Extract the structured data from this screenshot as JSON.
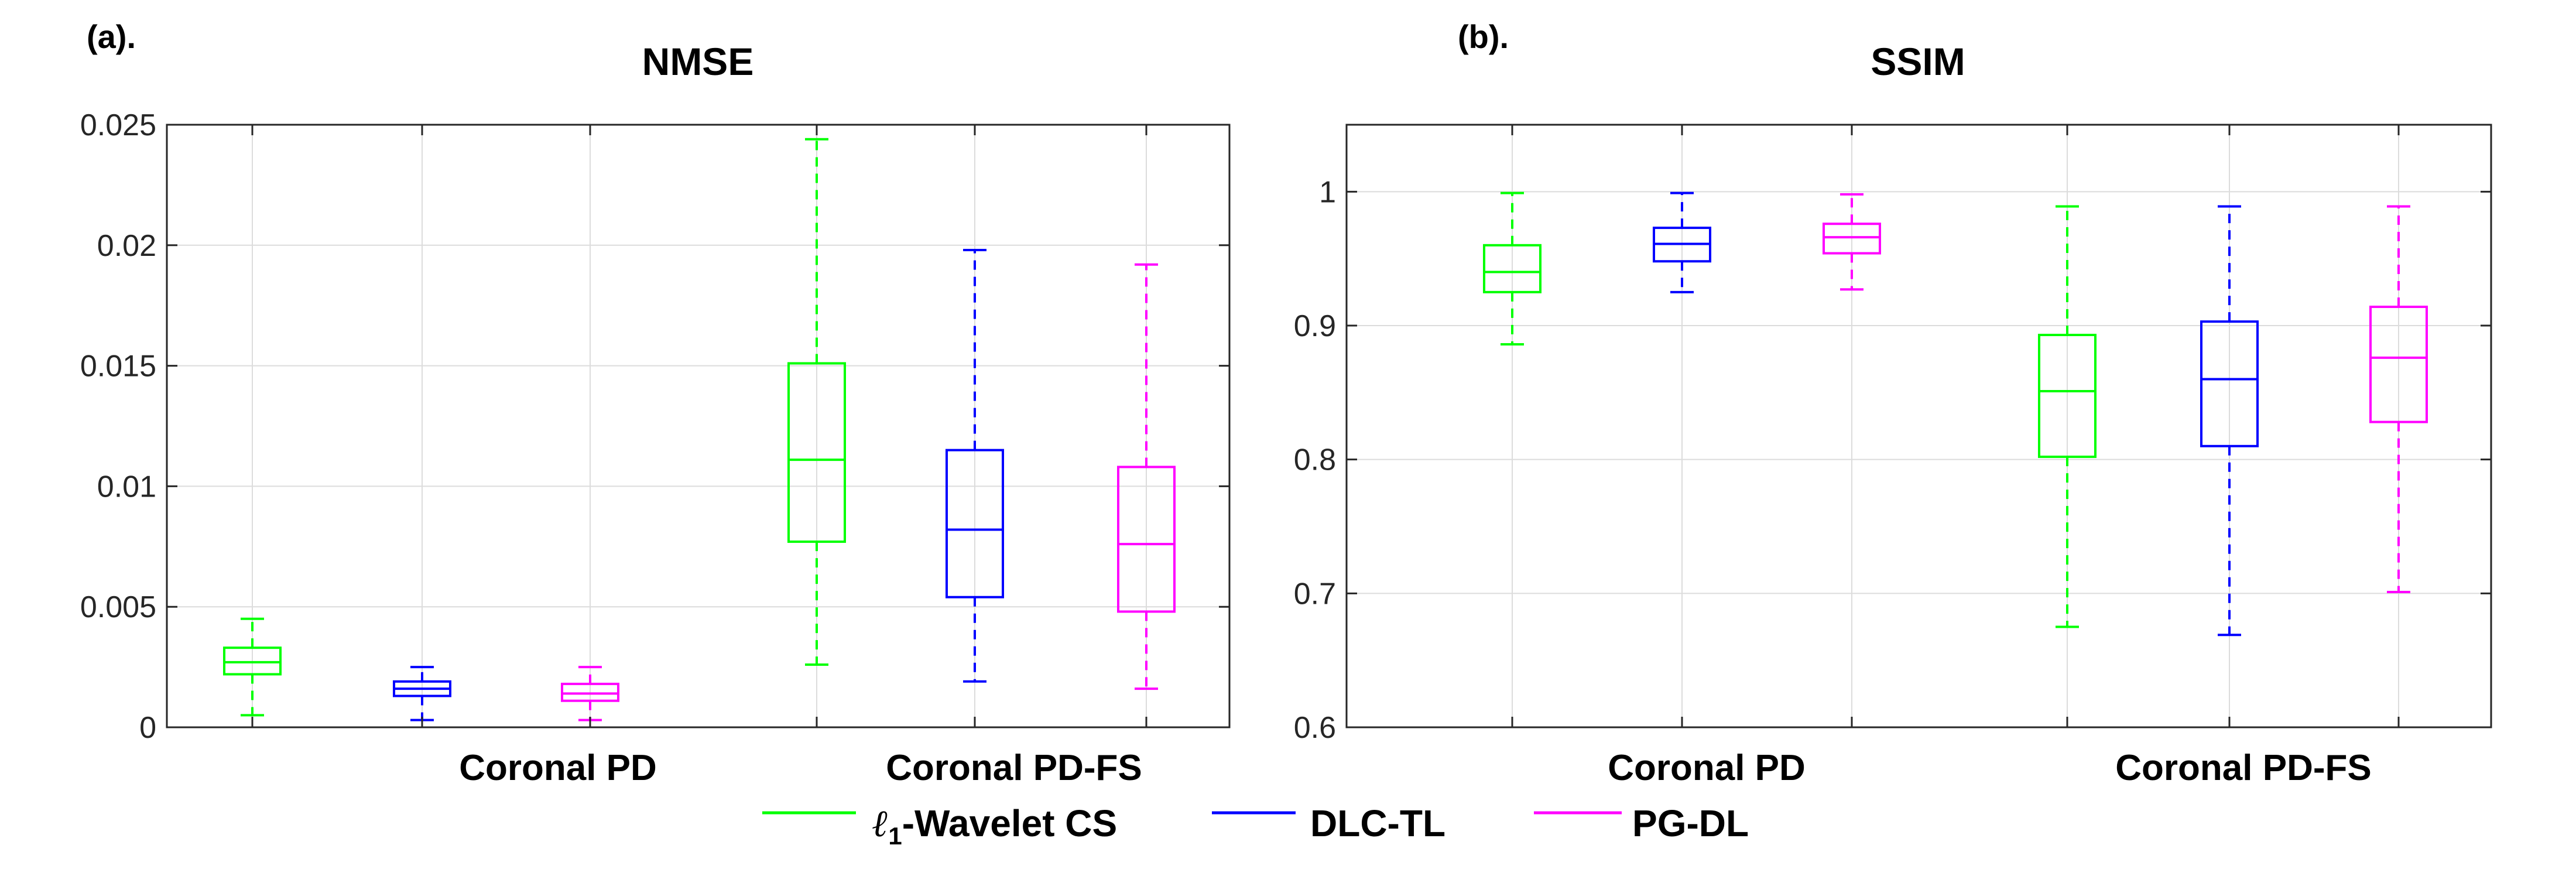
{
  "chart_data": [
    {
      "type": "box",
      "panel_label": "(a).",
      "title": "NMSE",
      "xlabel": "",
      "ylabel": "",
      "ylim": [
        0,
        0.025
      ],
      "yticks": [
        "0",
        "0.005",
        "0.01",
        "0.015",
        "0.02",
        "0.025"
      ],
      "grid": true,
      "groups": [
        "Coronal PD",
        "Coronal PD-FS"
      ],
      "series": [
        {
          "name": "ℓ1-Wavelet CS",
          "color": "#00ff00",
          "boxes": [
            {
              "min": 0.0005,
              "q1": 0.0022,
              "median": 0.0027,
              "q3": 0.0033,
              "max": 0.0045
            },
            {
              "min": 0.0026,
              "q1": 0.0077,
              "median": 0.0111,
              "q3": 0.0151,
              "max": 0.0244
            }
          ]
        },
        {
          "name": "DLC-TL",
          "color": "#0000ff",
          "boxes": [
            {
              "min": 0.0003,
              "q1": 0.0013,
              "median": 0.0016,
              "q3": 0.0019,
              "max": 0.0025
            },
            {
              "min": 0.0019,
              "q1": 0.0054,
              "median": 0.0082,
              "q3": 0.0115,
              "max": 0.0198
            }
          ]
        },
        {
          "name": "PG-DL",
          "color": "#ff00ff",
          "boxes": [
            {
              "min": 0.0003,
              "q1": 0.0011,
              "median": 0.0014,
              "q3": 0.0018,
              "max": 0.0025
            },
            {
              "min": 0.0016,
              "q1": 0.0048,
              "median": 0.0076,
              "q3": 0.0108,
              "max": 0.0192
            }
          ]
        }
      ]
    },
    {
      "type": "box",
      "panel_label": "(b).",
      "title": "SSIM",
      "xlabel": "",
      "ylabel": "",
      "ylim": [
        0.6,
        1.05
      ],
      "yticks": [
        "0.6",
        "0.7",
        "0.8",
        "0.9",
        "1"
      ],
      "grid": true,
      "groups": [
        "Coronal PD",
        "Coronal PD-FS"
      ],
      "series": [
        {
          "name": "ℓ1-Wavelet CS",
          "color": "#00ff00",
          "boxes": [
            {
              "min": 0.886,
              "q1": 0.925,
              "median": 0.94,
              "q3": 0.96,
              "max": 0.999
            },
            {
              "min": 0.675,
              "q1": 0.802,
              "median": 0.851,
              "q3": 0.893,
              "max": 0.989
            }
          ]
        },
        {
          "name": "DLC-TL",
          "color": "#0000ff",
          "boxes": [
            {
              "min": 0.925,
              "q1": 0.948,
              "median": 0.961,
              "q3": 0.973,
              "max": 0.999
            },
            {
              "min": 0.669,
              "q1": 0.81,
              "median": 0.86,
              "q3": 0.903,
              "max": 0.989
            }
          ]
        },
        {
          "name": "PG-DL",
          "color": "#ff00ff",
          "boxes": [
            {
              "min": 0.927,
              "q1": 0.954,
              "median": 0.966,
              "q3": 0.976,
              "max": 0.998
            },
            {
              "min": 0.701,
              "q1": 0.828,
              "median": 0.876,
              "q3": 0.914,
              "max": 0.989
            }
          ]
        }
      ]
    }
  ],
  "legend": {
    "placement": "bottom-center",
    "items": [
      {
        "label_main": "-Wavelet CS",
        "label_ell": "ℓ",
        "label_sub": "1",
        "color": "#00ff00"
      },
      {
        "label_main": "DLC-TL",
        "color": "#0000ff"
      },
      {
        "label_main": "PG-DL",
        "color": "#ff00ff"
      }
    ]
  }
}
